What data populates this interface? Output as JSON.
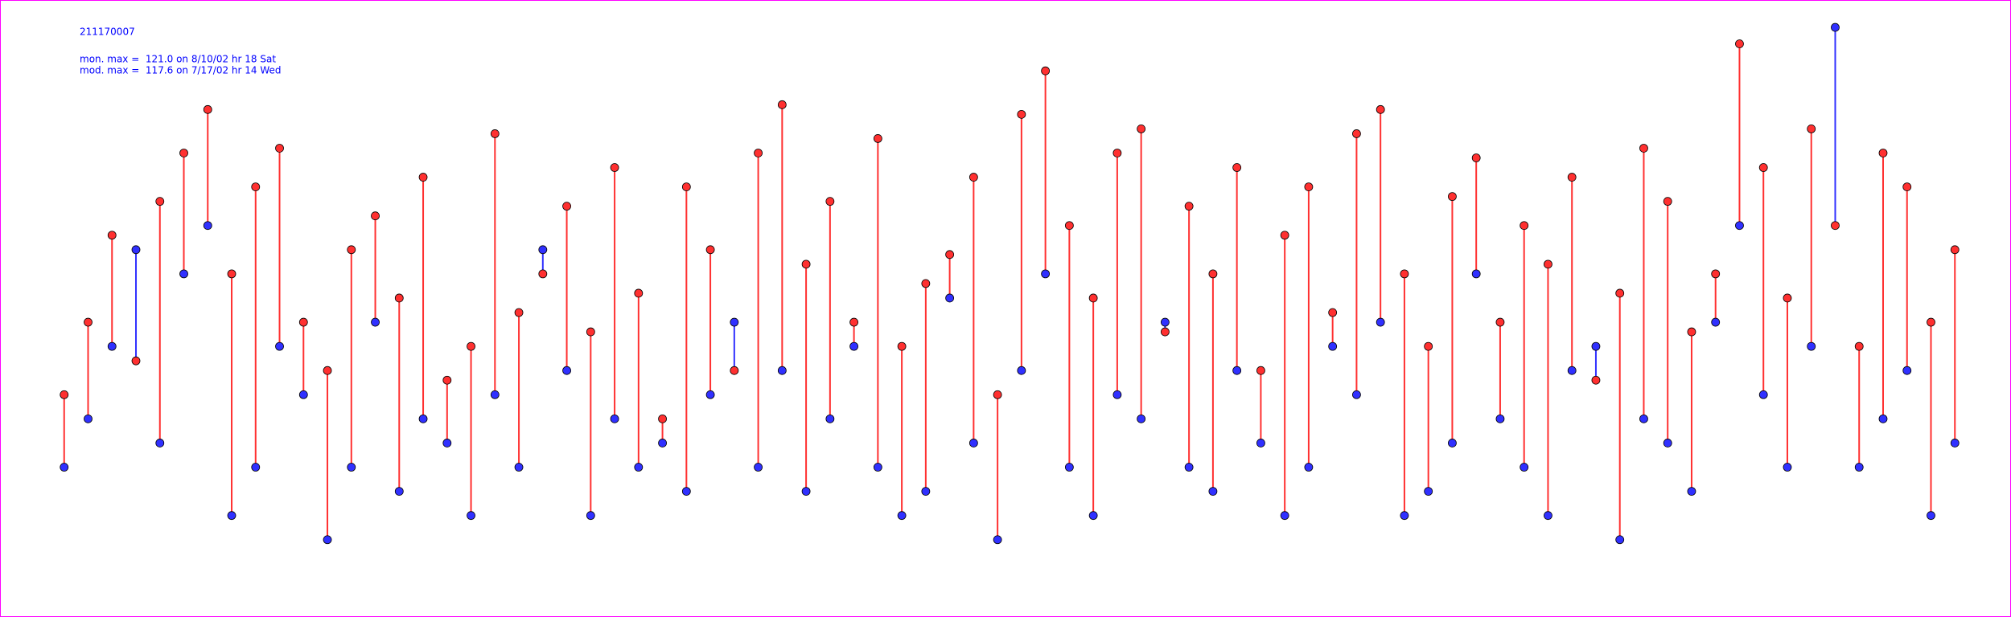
{
  "chart_data": {
    "type": "segments",
    "title": "211170007",
    "annotations": [
      "mon. max =  121.0 on 8/10/02 hr 18 Sat",
      "mod. max =  117.6 on 7/17/02 hr 14 Wed"
    ],
    "x": [
      0,
      1,
      2,
      3,
      4,
      5,
      6,
      7,
      8,
      9,
      10,
      11,
      12,
      13,
      14,
      15,
      16,
      17,
      18,
      19,
      20,
      21,
      22,
      23,
      24,
      25,
      26,
      27,
      28,
      29,
      30,
      31,
      32,
      33,
      34,
      35,
      36,
      37,
      38,
      39,
      40,
      41,
      42,
      43,
      44,
      45,
      46,
      47,
      48,
      49,
      50,
      51,
      52,
      53,
      54,
      55,
      56,
      57,
      58,
      59,
      60,
      61,
      62,
      63,
      64,
      65,
      66,
      67,
      68,
      69,
      70,
      71,
      72,
      73,
      74,
      75,
      76,
      77,
      78,
      79
    ],
    "xlim": [
      -1,
      80
    ],
    "ylim": [
      0,
      125
    ],
    "series": [
      {
        "color": "#ff3030",
        "values": [
          45,
          60,
          78,
          52,
          85,
          95,
          104,
          70,
          88,
          96,
          60,
          50,
          75,
          82,
          65,
          90,
          48,
          55,
          99,
          62,
          70,
          84,
          58,
          92,
          66,
          40,
          88,
          75,
          50,
          95,
          105,
          72,
          85,
          60,
          98,
          55,
          68,
          74,
          90,
          45,
          103,
          112,
          80,
          65,
          95,
          100,
          58,
          84,
          70,
          92,
          50,
          78,
          88,
          62,
          99,
          104,
          70,
          55,
          86,
          94,
          60,
          80,
          72,
          90,
          48,
          66,
          96,
          85,
          58,
          70,
          117.6,
          92,
          65,
          100,
          80,
          55,
          95,
          88,
          60,
          75
        ]
      },
      {
        "color": "#3030ff",
        "values": [
          30,
          40,
          55,
          75,
          35,
          70,
          80,
          20,
          30,
          55,
          45,
          15,
          30,
          60,
          25,
          40,
          35,
          20,
          45,
          30,
          75,
          50,
          20,
          40,
          30,
          35,
          25,
          45,
          60,
          30,
          50,
          25,
          40,
          55,
          30,
          20,
          25,
          65,
          35,
          15,
          50,
          70,
          30,
          20,
          45,
          40,
          60,
          30,
          25,
          50,
          35,
          20,
          30,
          55,
          45,
          60,
          20,
          25,
          35,
          70,
          40,
          30,
          20,
          50,
          55,
          15,
          40,
          35,
          25,
          60,
          80,
          45,
          30,
          55,
          121,
          30,
          40,
          50,
          20,
          35
        ]
      }
    ]
  }
}
